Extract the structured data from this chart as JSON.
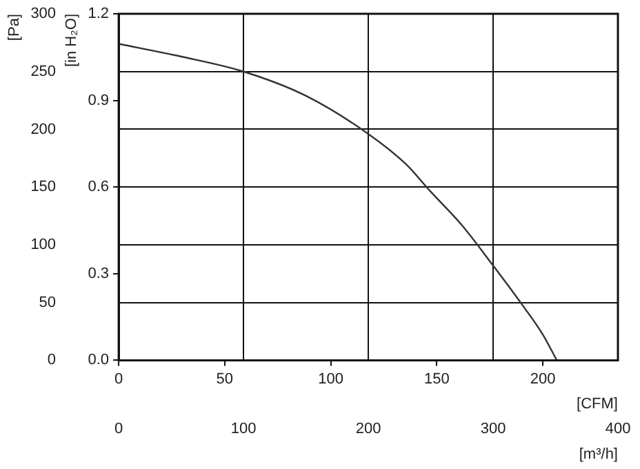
{
  "chart_data": {
    "type": "line",
    "xlabel": "[m³/h]",
    "ylabel": "[Pa]",
    "x2label": "[CFM]",
    "y2label": "[in H₂O]",
    "xlim": [
      0,
      400
    ],
    "xticks": [
      0,
      100,
      200,
      300,
      400
    ],
    "x2lim": [
      0,
      235.4
    ],
    "x2ticks": [
      0,
      50,
      100,
      150,
      200
    ],
    "ylim": [
      0,
      300
    ],
    "yticks": [
      0,
      50,
      100,
      150,
      200,
      250,
      300
    ],
    "y2lim": [
      0,
      1.2
    ],
    "y2ticks": [
      {
        "value": 0,
        "label": "0.0"
      },
      0.3,
      0.6,
      0.9,
      1.2
    ],
    "grid": true,
    "legend": false,
    "marker": "none",
    "line_style": "solid",
    "series": [
      {
        "color": "#333333",
        "x": [
          0,
          50,
          100,
          150,
          200,
          230,
          250,
          275,
          300,
          322,
          340,
          351
        ],
        "values": [
          274,
          263,
          250,
          229,
          196,
          170,
          146,
          117,
          82,
          50,
          22,
          0
        ]
      }
    ]
  }
}
